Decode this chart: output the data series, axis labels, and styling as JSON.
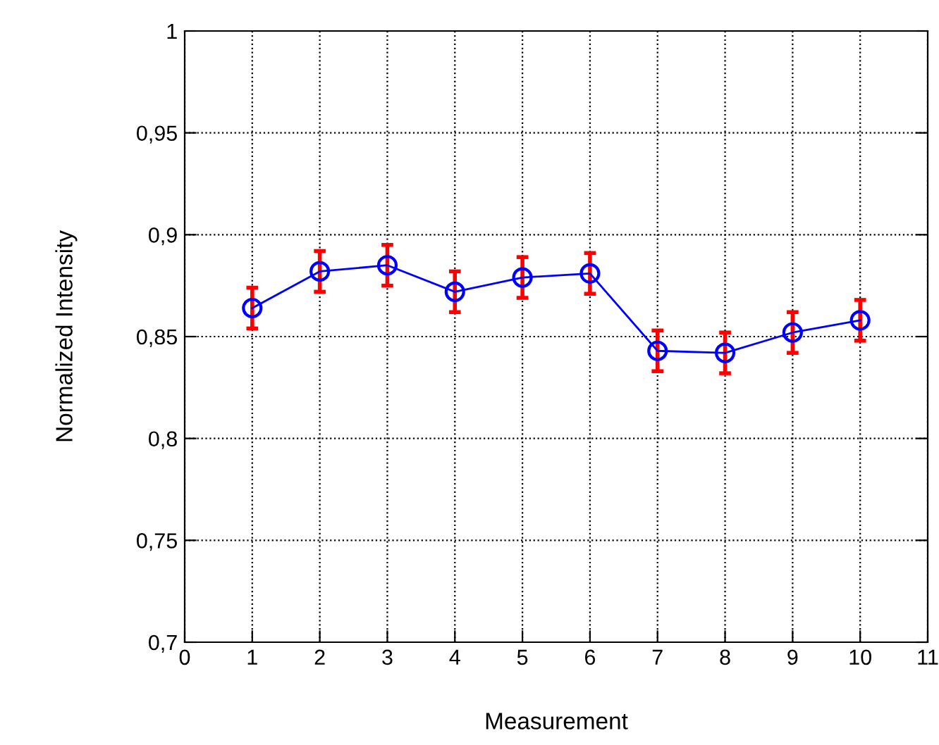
{
  "chart_data": {
    "type": "line",
    "xlabel": "Measurement",
    "ylabel": "Normalized Intensity",
    "x": [
      1,
      2,
      3,
      4,
      5,
      6,
      7,
      8,
      9,
      10
    ],
    "series": [
      {
        "color": "#0000ff",
        "values": [
          0.864,
          0.882,
          0.885,
          0.872,
          0.879,
          0.881,
          0.843,
          0.842,
          0.852,
          0.858
        ],
        "errors": [
          0.01,
          0.01,
          0.01,
          0.01,
          0.01,
          0.01,
          0.01,
          0.01,
          0.01,
          0.01
        ]
      }
    ],
    "xlim": [
      0,
      11
    ],
    "xticks": [
      0,
      1,
      2,
      3,
      4,
      5,
      6,
      7,
      8,
      9,
      10,
      11
    ],
    "ylim": [
      0.7,
      1
    ],
    "yticks": [
      {
        "value": 0.7,
        "label": "0,7"
      },
      {
        "value": 0.75,
        "label": "0,75"
      },
      {
        "value": 0.8,
        "label": "0,8"
      },
      {
        "value": 0.85,
        "label": "0,85"
      },
      {
        "value": 0.9,
        "label": "0,9"
      },
      {
        "value": 0.95,
        "label": "0,95"
      },
      {
        "value": 1,
        "label": "1"
      }
    ],
    "grid": true,
    "marker": "circle",
    "line_style": "solid"
  }
}
